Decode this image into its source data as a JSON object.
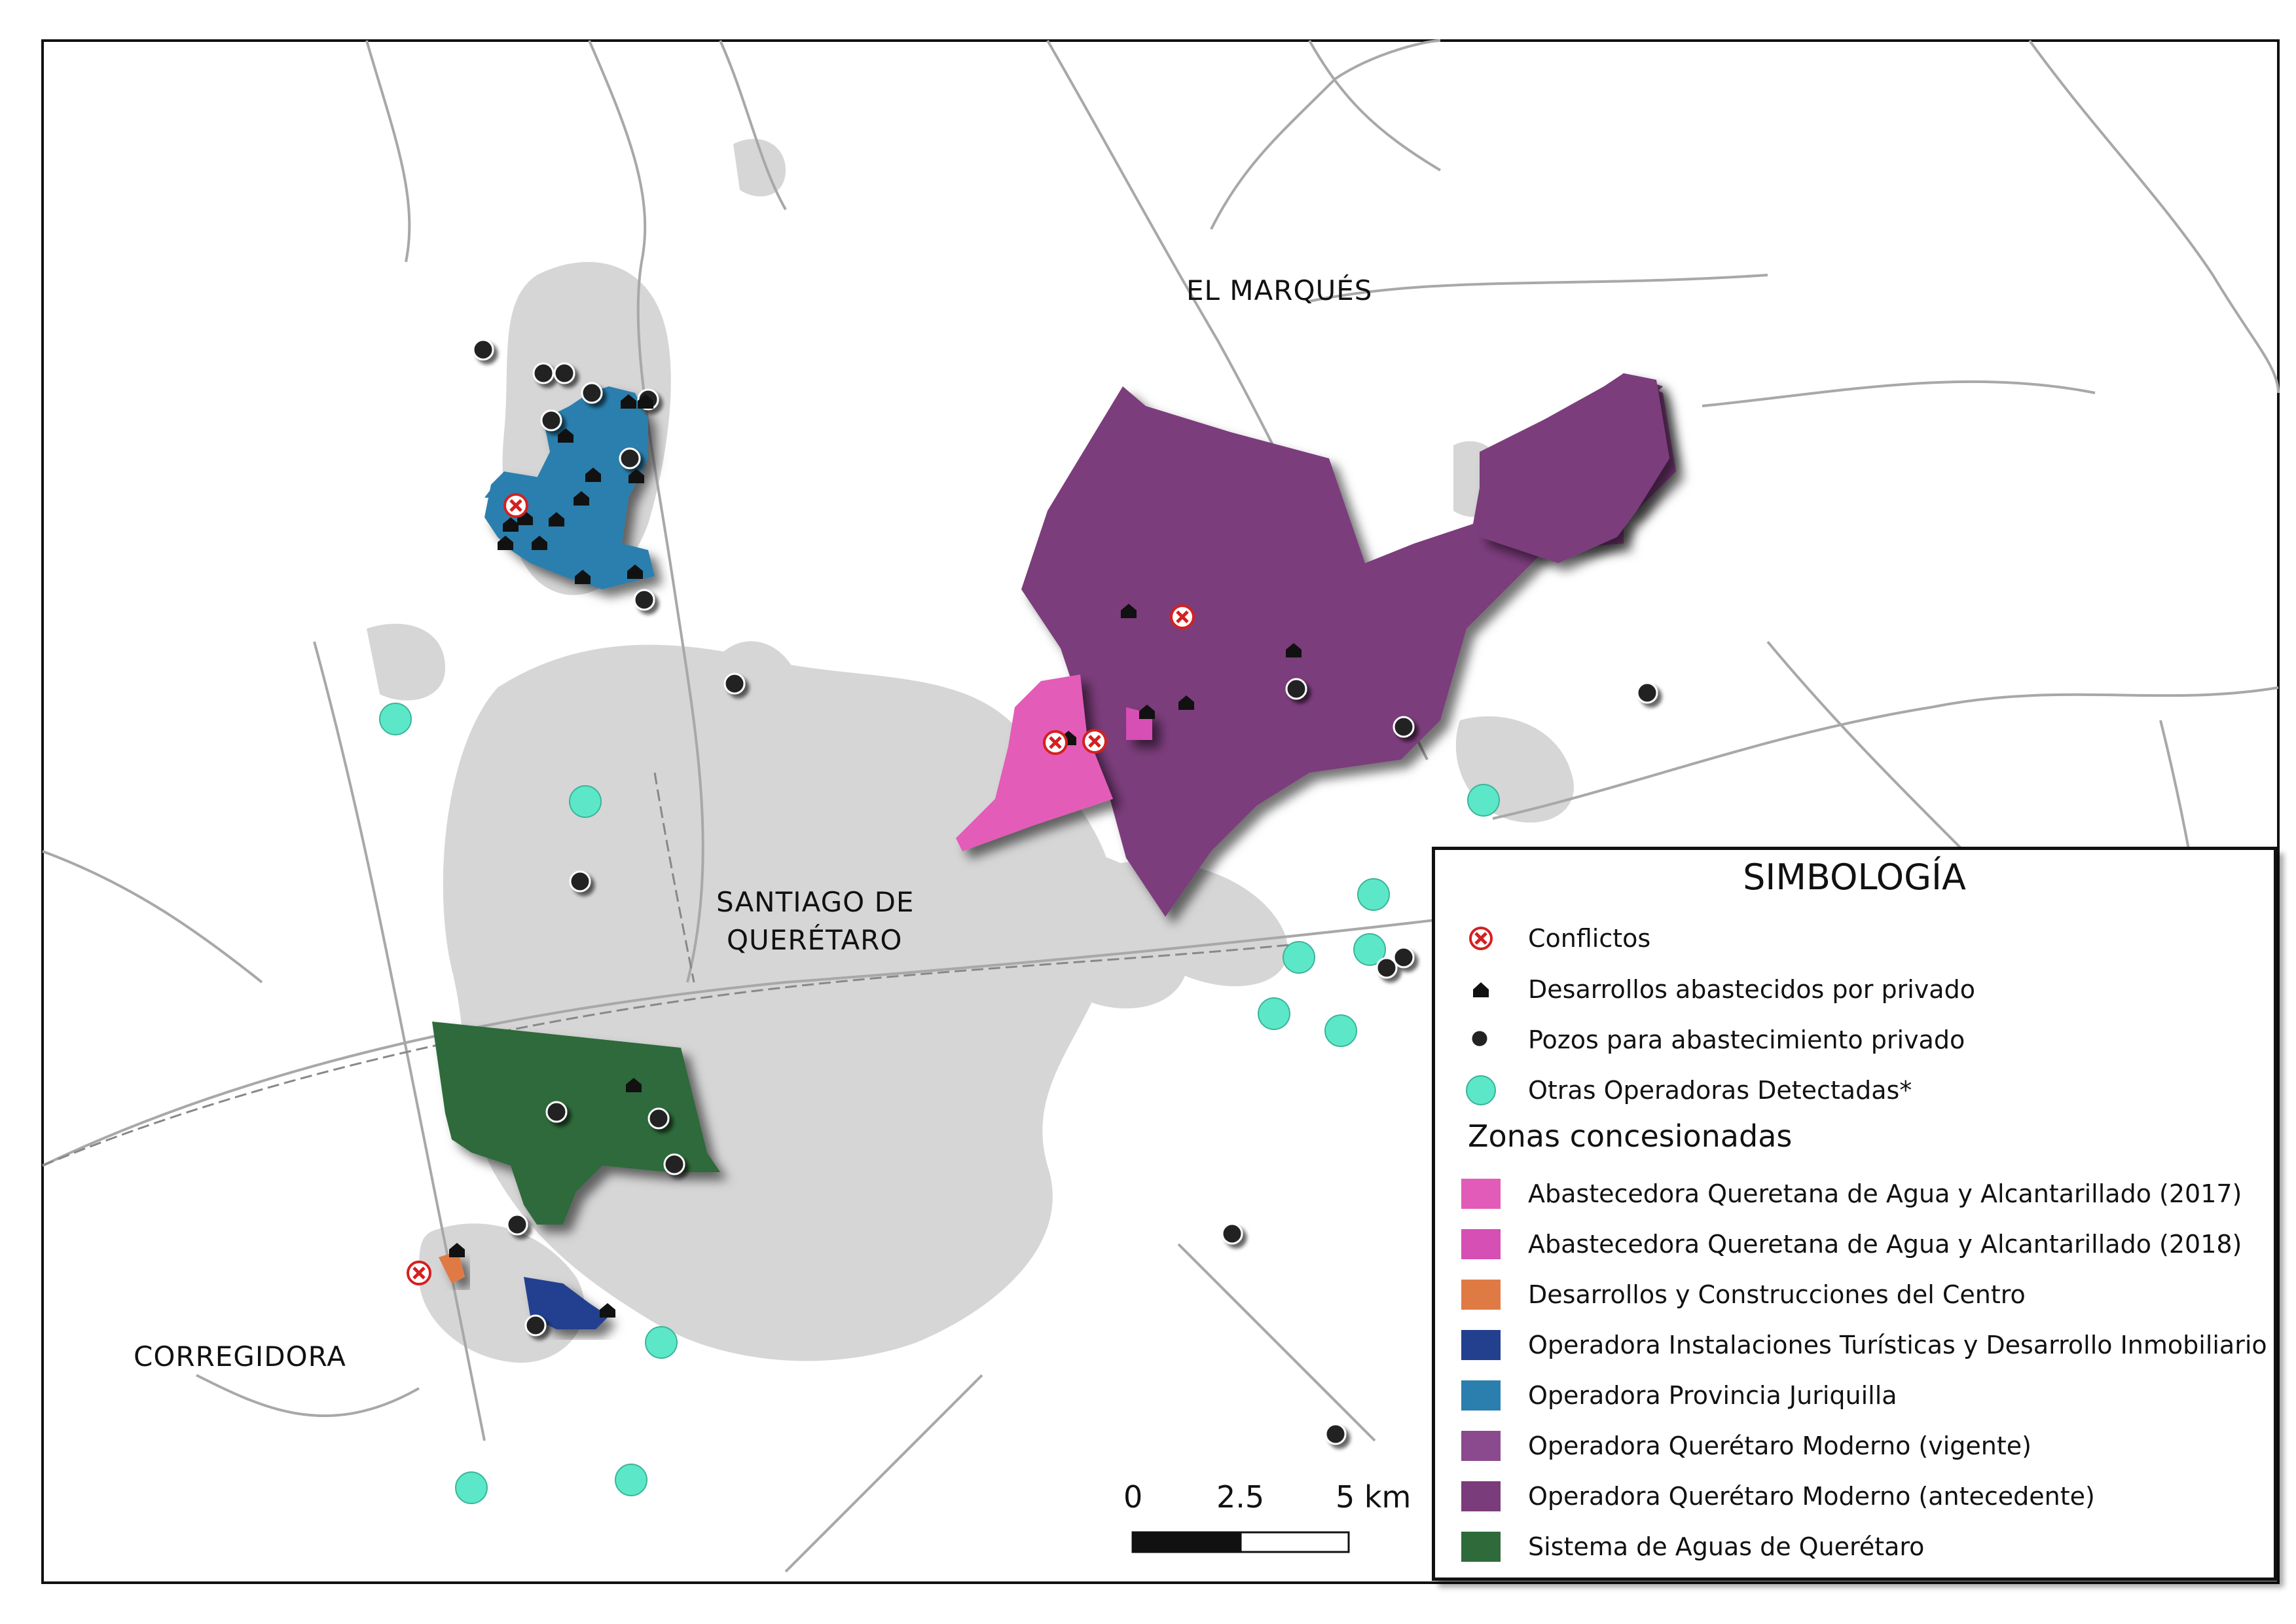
{
  "place_labels": {
    "el_marques": "EL MARQUÉS",
    "santiago_line1": "SANTIAGO DE",
    "santiago_line2": "QUERÉTARO",
    "corregidora": "CORREGIDORA"
  },
  "scale_bar": {
    "label_0": "0",
    "label_mid": "2.5",
    "label_end": "5 km"
  },
  "legend": {
    "title": "SIMBOLOGÍA",
    "points": [
      {
        "label": "Conflictos",
        "icon": "conflict-x-icon"
      },
      {
        "label": "Desarrollos abastecidos por privado",
        "icon": "house-icon"
      },
      {
        "label": "Pozos para abastecimiento privado",
        "icon": "well-dot-icon"
      },
      {
        "label": "Otras Operadoras Detectadas*",
        "icon": "operator-circle-icon"
      }
    ],
    "zones_title": "Zonas concesionadas",
    "zones": [
      {
        "label": "Abastecedora Queretana de Agua y Alcantarillado (2017)",
        "color": "#e35bb8"
      },
      {
        "label": "Abastecedora Queretana de Agua y Alcantarillado (2018)",
        "color": "#d64fb4"
      },
      {
        "label": "Desarrollos y Construcciones del Centro",
        "color": "#e07a45"
      },
      {
        "label": "Operadora Instalaciones Turísticas y Desarrollo Inmobiliario",
        "color": "#23408f"
      },
      {
        "label": "Operadora Provincia Juriquilla",
        "color": "#2a7fae"
      },
      {
        "label": "Operadora Querétaro Moderno (vigente)",
        "color": "#8b4a8e"
      },
      {
        "label": "Operadora Querétaro Moderno (antecedente)",
        "color": "#7b3c7c"
      },
      {
        "label": "Sistema de Aguas de Querétaro",
        "color": "#2f6b3a"
      }
    ]
  },
  "colors": {
    "urban_gray": "#c8c8c8",
    "road": "#a8a8a8",
    "operator_cyan": "#5ce8c8",
    "well_dark": "#222222",
    "conflict_red": "#d42020"
  }
}
